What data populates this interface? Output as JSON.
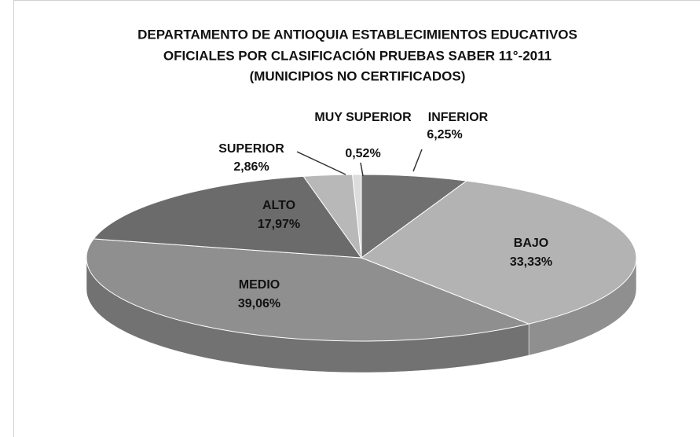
{
  "chart_data": {
    "type": "pie3d",
    "title": [
      "DEPARTAMENTO DE ANTIOQUIA ESTABLECIMIENTOS EDUCATIVOS",
      "OFICIALES POR CLASIFICACIÓN PRUEBAS SABER 11°-2011",
      "(MUNICIPIOS NO CERTIFICADOS)"
    ],
    "categories": [
      "INFERIOR",
      "BAJO",
      "MEDIO",
      "ALTO",
      "SUPERIOR",
      "MUY SUPERIOR"
    ],
    "values": [
      6.25,
      33.33,
      39.06,
      17.97,
      2.86,
      0.52
    ],
    "value_labels": [
      "6,25%",
      "33,33%",
      "39,06%",
      "17,97%",
      "2,86%",
      "0,52%"
    ],
    "colors": [
      "#707070",
      "#b3b3b3",
      "#8f8f8f",
      "#6b6b6b",
      "#b8b8b8",
      "#dcdcdc"
    ]
  }
}
